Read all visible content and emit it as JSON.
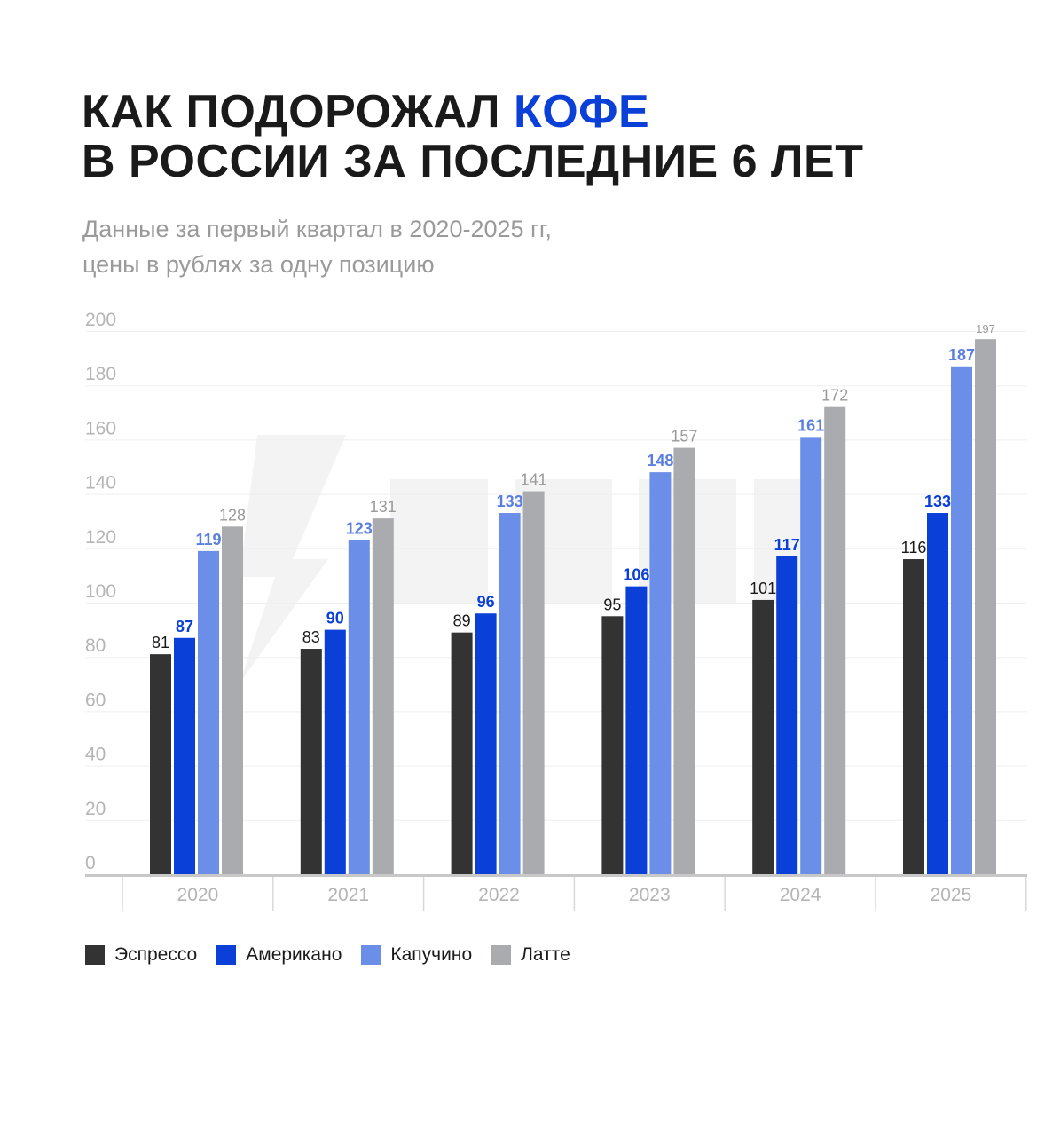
{
  "title": {
    "line1_part1": "КАК ПОДОРОЖАЛ ",
    "line1_accent": "КОФЕ",
    "line2": "В РОССИИ ЗА ПОСЛЕДНИЕ 6 ЛЕТ"
  },
  "subtitle": {
    "line1": "Данные за первый квартал в 2020-2025 гг,",
    "line2": "цены в рублях за одну позицию"
  },
  "colors": {
    "accent": "#0a3fd8",
    "espresso": "#333333",
    "americano": "#0a3fd8",
    "cappuccino": "#6b8fe8",
    "latte": "#a9abaf",
    "axis_text": "#b5b5b5",
    "grid": "#efefef"
  },
  "chart_data": {
    "type": "bar",
    "title": "КАК ПОДОРОЖАЛ КОФЕ В РОССИИ ЗА ПОСЛЕДНИЕ 6 ЛЕТ",
    "xlabel": "",
    "ylabel": "",
    "ylim": [
      0,
      200
    ],
    "yticks": [
      0,
      20,
      40,
      60,
      80,
      100,
      120,
      140,
      160,
      180,
      200
    ],
    "categories": [
      "2020",
      "2021",
      "2022",
      "2023",
      "2024",
      "2025"
    ],
    "legend_position": "bottom-left",
    "series": [
      {
        "name": "Эспрессо",
        "color": "#333333",
        "label_color": "#1a1a1a",
        "label_bold": false,
        "values": [
          81,
          83,
          89,
          95,
          101,
          116
        ]
      },
      {
        "name": "Американо",
        "color": "#0a3fd8",
        "label_color": "#0a3fd8",
        "label_bold": true,
        "values": [
          87,
          90,
          96,
          106,
          117,
          133
        ]
      },
      {
        "name": "Капучино",
        "color": "#6b8fe8",
        "label_color": "#5a7fe0",
        "label_bold": true,
        "values": [
          119,
          123,
          133,
          148,
          161,
          187
        ]
      },
      {
        "name": "Латте",
        "color": "#a9abaf",
        "label_color": "#9a9a9a",
        "label_bold": false,
        "values": [
          128,
          131,
          141,
          157,
          172,
          197
        ]
      }
    ]
  }
}
